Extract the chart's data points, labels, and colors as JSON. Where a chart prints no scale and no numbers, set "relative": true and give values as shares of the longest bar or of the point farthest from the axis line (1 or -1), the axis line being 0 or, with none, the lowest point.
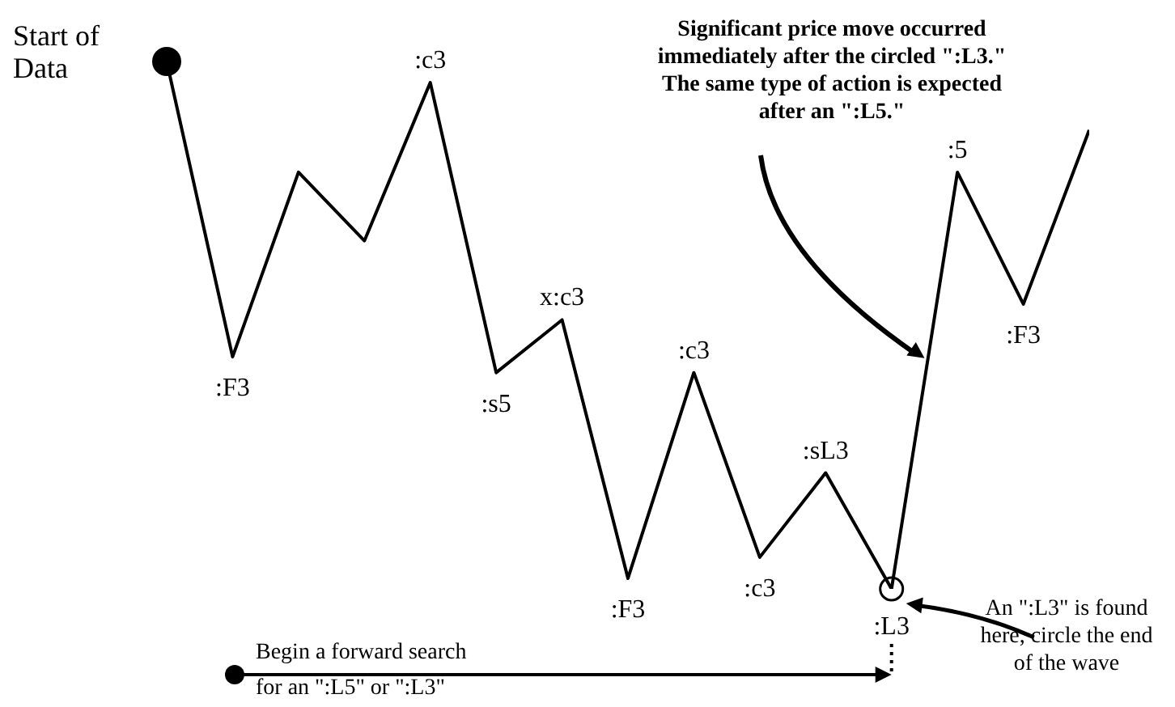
{
  "chart_data": {
    "type": "line",
    "relative": true,
    "categories": [
      null,
      null,
      null,
      null,
      null,
      null,
      null,
      null,
      null,
      null,
      null,
      null,
      null,
      null,
      null
    ],
    "series": [
      {
        "color": "#000000",
        "values": [
          1,
          0.44,
          0.79,
          0.66,
          0.96,
          0.41,
          0.51,
          0.02,
          0.41,
          0.06,
          0.22,
          0,
          0.79,
          0.54,
          0.87
        ]
      }
    ],
    "annotations": [
      "Start of Data",
      "Significant price move occurred immediately after the circled \":L3.\" The same type of action is expected after an \":L5.\"",
      "An \":L3\" is found here, circle the end of the wave",
      "Begin a forward search for an \":L5\" or \":L3\"",
      {
        "text": ":F3",
        "y": 0.44
      },
      {
        "text": ":c3",
        "y": 0.96
      },
      {
        "text": ":s5",
        "y": 0.41
      },
      {
        "text": "x:c3",
        "y": 0.51
      },
      {
        "text": ":F3",
        "y": 0.02
      },
      {
        "text": ":c3",
        "y": 0.41
      },
      {
        "text": ":c3",
        "y": 0.06
      },
      {
        "text": ":sL3",
        "y": 0.22
      },
      {
        "text": ":L3",
        "y": 0
      },
      {
        "text": ":5",
        "y": 0.79
      },
      {
        "text": ":F3",
        "y": 0.54
      }
    ]
  }
}
